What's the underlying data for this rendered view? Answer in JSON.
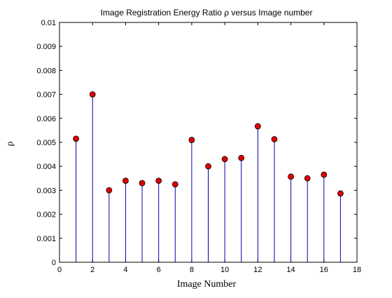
{
  "chart_data": {
    "type": "stem",
    "title": "Image Registration Energy Ratio ρ versus Image number",
    "xlabel": "Image Number",
    "ylabel": "ρ",
    "xlim": [
      0,
      18
    ],
    "ylim": [
      0,
      0.01
    ],
    "xticks": [
      0,
      2,
      4,
      6,
      8,
      10,
      12,
      14,
      16,
      18
    ],
    "xtick_labels": [
      "0",
      "2",
      "4",
      "6",
      "8",
      "10",
      "12",
      "14",
      "16",
      "18"
    ],
    "yticks": [
      0,
      0.001,
      0.002,
      0.003,
      0.004,
      0.005,
      0.006,
      0.007,
      0.008,
      0.009,
      0.01
    ],
    "ytick_labels": [
      "0",
      "0.001",
      "0.002",
      "0.003",
      "0.004",
      "0.005",
      "0.006",
      "0.007",
      "0.008",
      "0.009",
      "0.01"
    ],
    "grid": false,
    "x": [
      1,
      2,
      3,
      4,
      5,
      6,
      7,
      8,
      9,
      10,
      11,
      12,
      13,
      14,
      15,
      16,
      17
    ],
    "y": [
      0.00515,
      0.007,
      0.003,
      0.0034,
      0.0033,
      0.0034,
      0.00325,
      0.0051,
      0.004,
      0.0043,
      0.00435,
      0.00567,
      0.00513,
      0.00357,
      0.0035,
      0.00365,
      0.00287
    ],
    "colors": {
      "stem": "#0000aa",
      "marker_fill": "#dd0000",
      "marker_edge": "#000000",
      "axis": "#000000"
    }
  }
}
